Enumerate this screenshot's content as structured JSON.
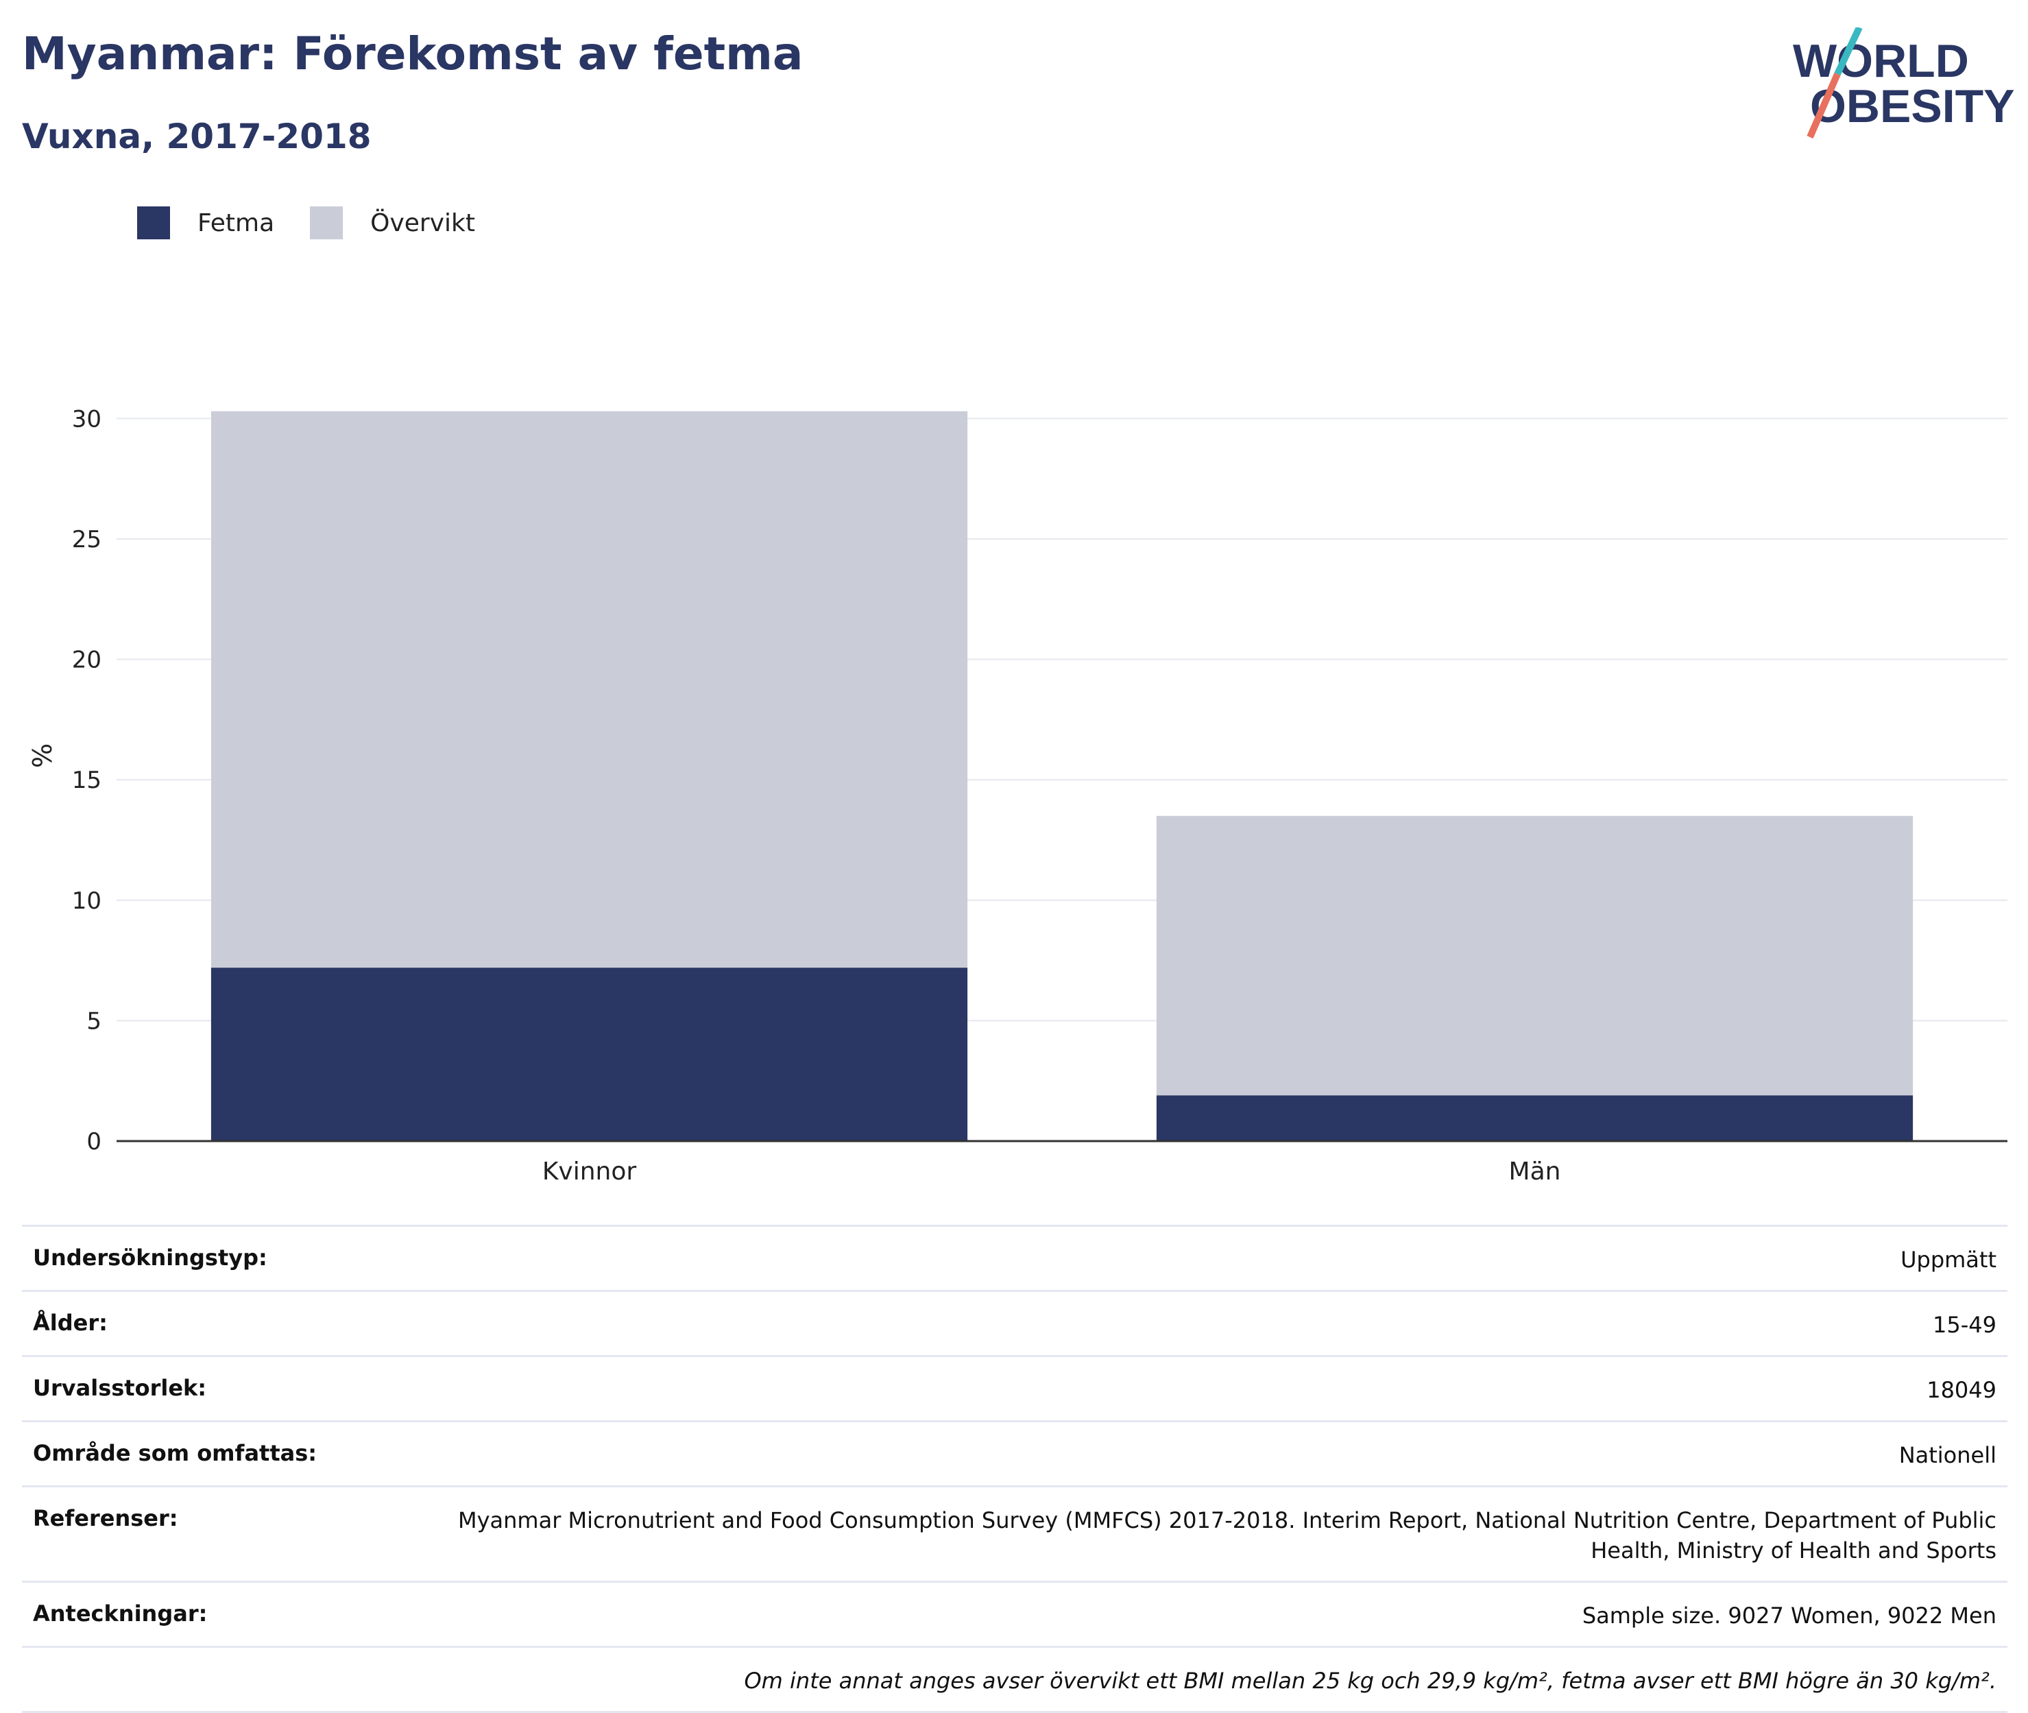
{
  "header": {
    "title": "Myanmar: Förekomst av fetma",
    "subtitle": "Vuxna, 2017-2018",
    "logo_text": [
      "WORLD",
      "OBESITY"
    ]
  },
  "legend": [
    {
      "label": "Fetma",
      "color": "#2a3663"
    },
    {
      "label": "Övervikt",
      "color": "#cacdd8"
    }
  ],
  "chart_data": {
    "type": "bar",
    "stacked": true,
    "categories": [
      "Kvinnor",
      "Män"
    ],
    "series": [
      {
        "name": "Fetma",
        "values": [
          7.2,
          1.9
        ],
        "color": "#2a3663"
      },
      {
        "name": "Övervikt",
        "values": [
          23.1,
          11.6
        ],
        "color": "#cacdd8"
      }
    ],
    "ylabel": "%",
    "ylim": [
      0,
      32
    ],
    "yticks": [
      0,
      5,
      10,
      15,
      20,
      25,
      30
    ],
    "grid": true,
    "legend_position": "top-left"
  },
  "info_table": [
    {
      "key": "Undersökningstyp:",
      "value": "Uppmätt"
    },
    {
      "key": "Ålder:",
      "value": "15-49"
    },
    {
      "key": "Urvalsstorlek:",
      "value": "18049"
    },
    {
      "key": "Område som omfattas:",
      "value": "Nationell"
    },
    {
      "key": "Referenser:",
      "value": "Myanmar Micronutrient and Food Consumption Survey (MMFCS) 2017-2018. Interim Report, National Nutrition Centre, Department of Public Health, Ministry of Health and Sports"
    },
    {
      "key": "Anteckningar:",
      "value": "Sample size. 9027 Women, 9022 Men"
    }
  ],
  "footnote": "Om inte annat anges avser övervikt ett BMI mellan 25 kg och 29,9 kg/m², fetma avser ett BMI högre än 30 kg/m²."
}
